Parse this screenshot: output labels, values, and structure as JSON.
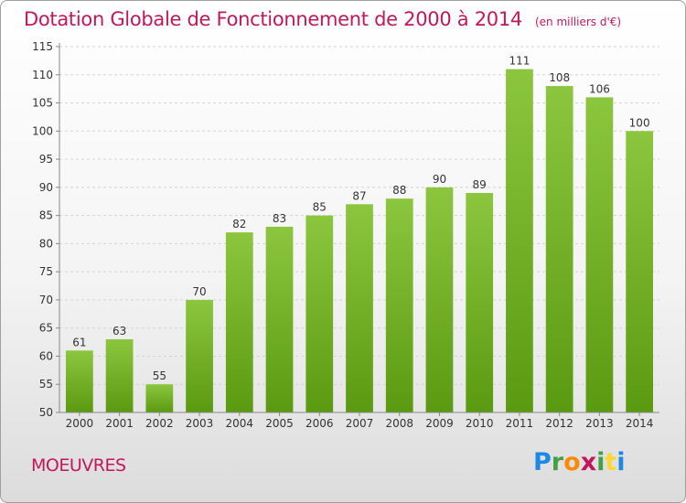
{
  "chart_data": {
    "type": "bar",
    "title": "Dotation Globale de Fonctionnement de 2000 à 2014",
    "subtitle": "(en milliers d'€)",
    "categories": [
      "2000",
      "2001",
      "2002",
      "2003",
      "2004",
      "2005",
      "2006",
      "2007",
      "2008",
      "2009",
      "2010",
      "2011",
      "2012",
      "2013",
      "2014"
    ],
    "values": [
      61,
      63,
      55,
      70,
      82,
      83,
      85,
      87,
      88,
      90,
      89,
      111,
      108,
      106,
      100
    ],
    "ylim": [
      50,
      115
    ],
    "yticks": [
      50,
      55,
      60,
      65,
      70,
      75,
      80,
      85,
      90,
      95,
      100,
      105,
      110,
      115
    ],
    "grid": true,
    "bar_color": "#8cc63f",
    "bar_color_dark": "#5a9a10"
  },
  "footer": {
    "town": "MOEUVRES",
    "logo": {
      "letters": [
        "P",
        "r",
        "o",
        "x",
        "i",
        "t",
        "i"
      ],
      "colors": [
        "#1e88e5",
        "#43a047",
        "#fb8c00",
        "#c2185b",
        "#43a047",
        "#fdd835",
        "#1e88e5"
      ]
    }
  }
}
